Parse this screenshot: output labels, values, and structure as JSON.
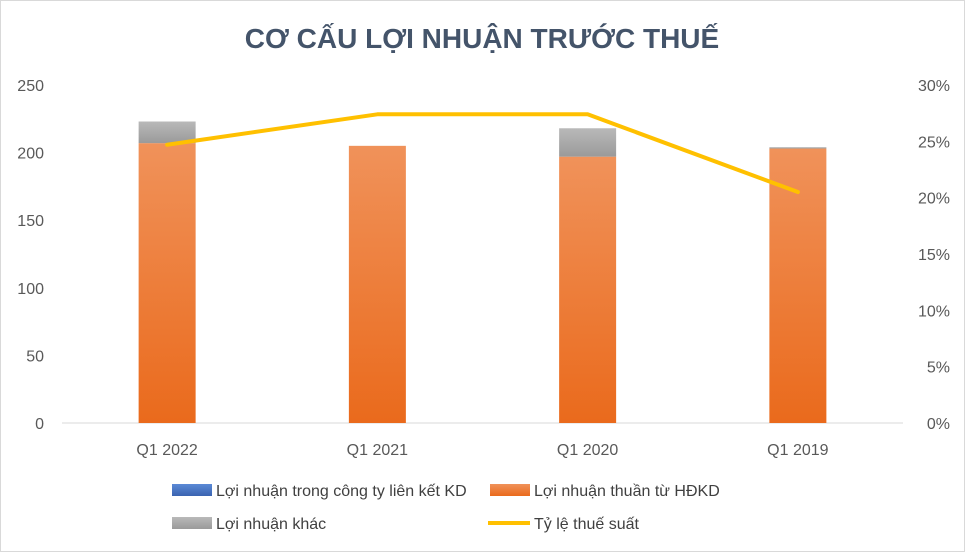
{
  "chart_data": {
    "type": "bar",
    "title": "CƠ CẤU LỢI NHUẬN TRƯỚC THUẾ",
    "categories": [
      "Q1 2022",
      "Q1 2021",
      "Q1 2020",
      "Q1 2019"
    ],
    "series": [
      {
        "name": "Lợi nhuận trong công ty liên kết KD",
        "kind": "stacked-bar",
        "axis": "left",
        "color": "#4472c4",
        "values": [
          0,
          0,
          0,
          0
        ]
      },
      {
        "name": "Lợi nhuận thuần từ HĐKD",
        "kind": "stacked-bar",
        "axis": "left",
        "color": "#f07b2a",
        "values": [
          207,
          205,
          197,
          203
        ]
      },
      {
        "name": "Lợi nhuận khác",
        "kind": "stacked-bar",
        "axis": "left",
        "color": "#a5a5a5",
        "values": [
          16,
          0,
          21,
          1
        ]
      },
      {
        "name": "Tỷ lệ thuế suất",
        "kind": "line",
        "axis": "right",
        "color": "#ffc000",
        "values": [
          0.247,
          0.274,
          0.274,
          0.205
        ]
      }
    ],
    "y_left": {
      "min": 0,
      "max": 250,
      "ticks": [
        "0",
        "50",
        "100",
        "150",
        "200",
        "250"
      ]
    },
    "y_right": {
      "min": 0,
      "max": 0.3,
      "ticks": [
        "0%",
        "5%",
        "10%",
        "15%",
        "20%",
        "25%",
        "30%"
      ]
    },
    "grid": false,
    "legend_position": "bottom"
  }
}
